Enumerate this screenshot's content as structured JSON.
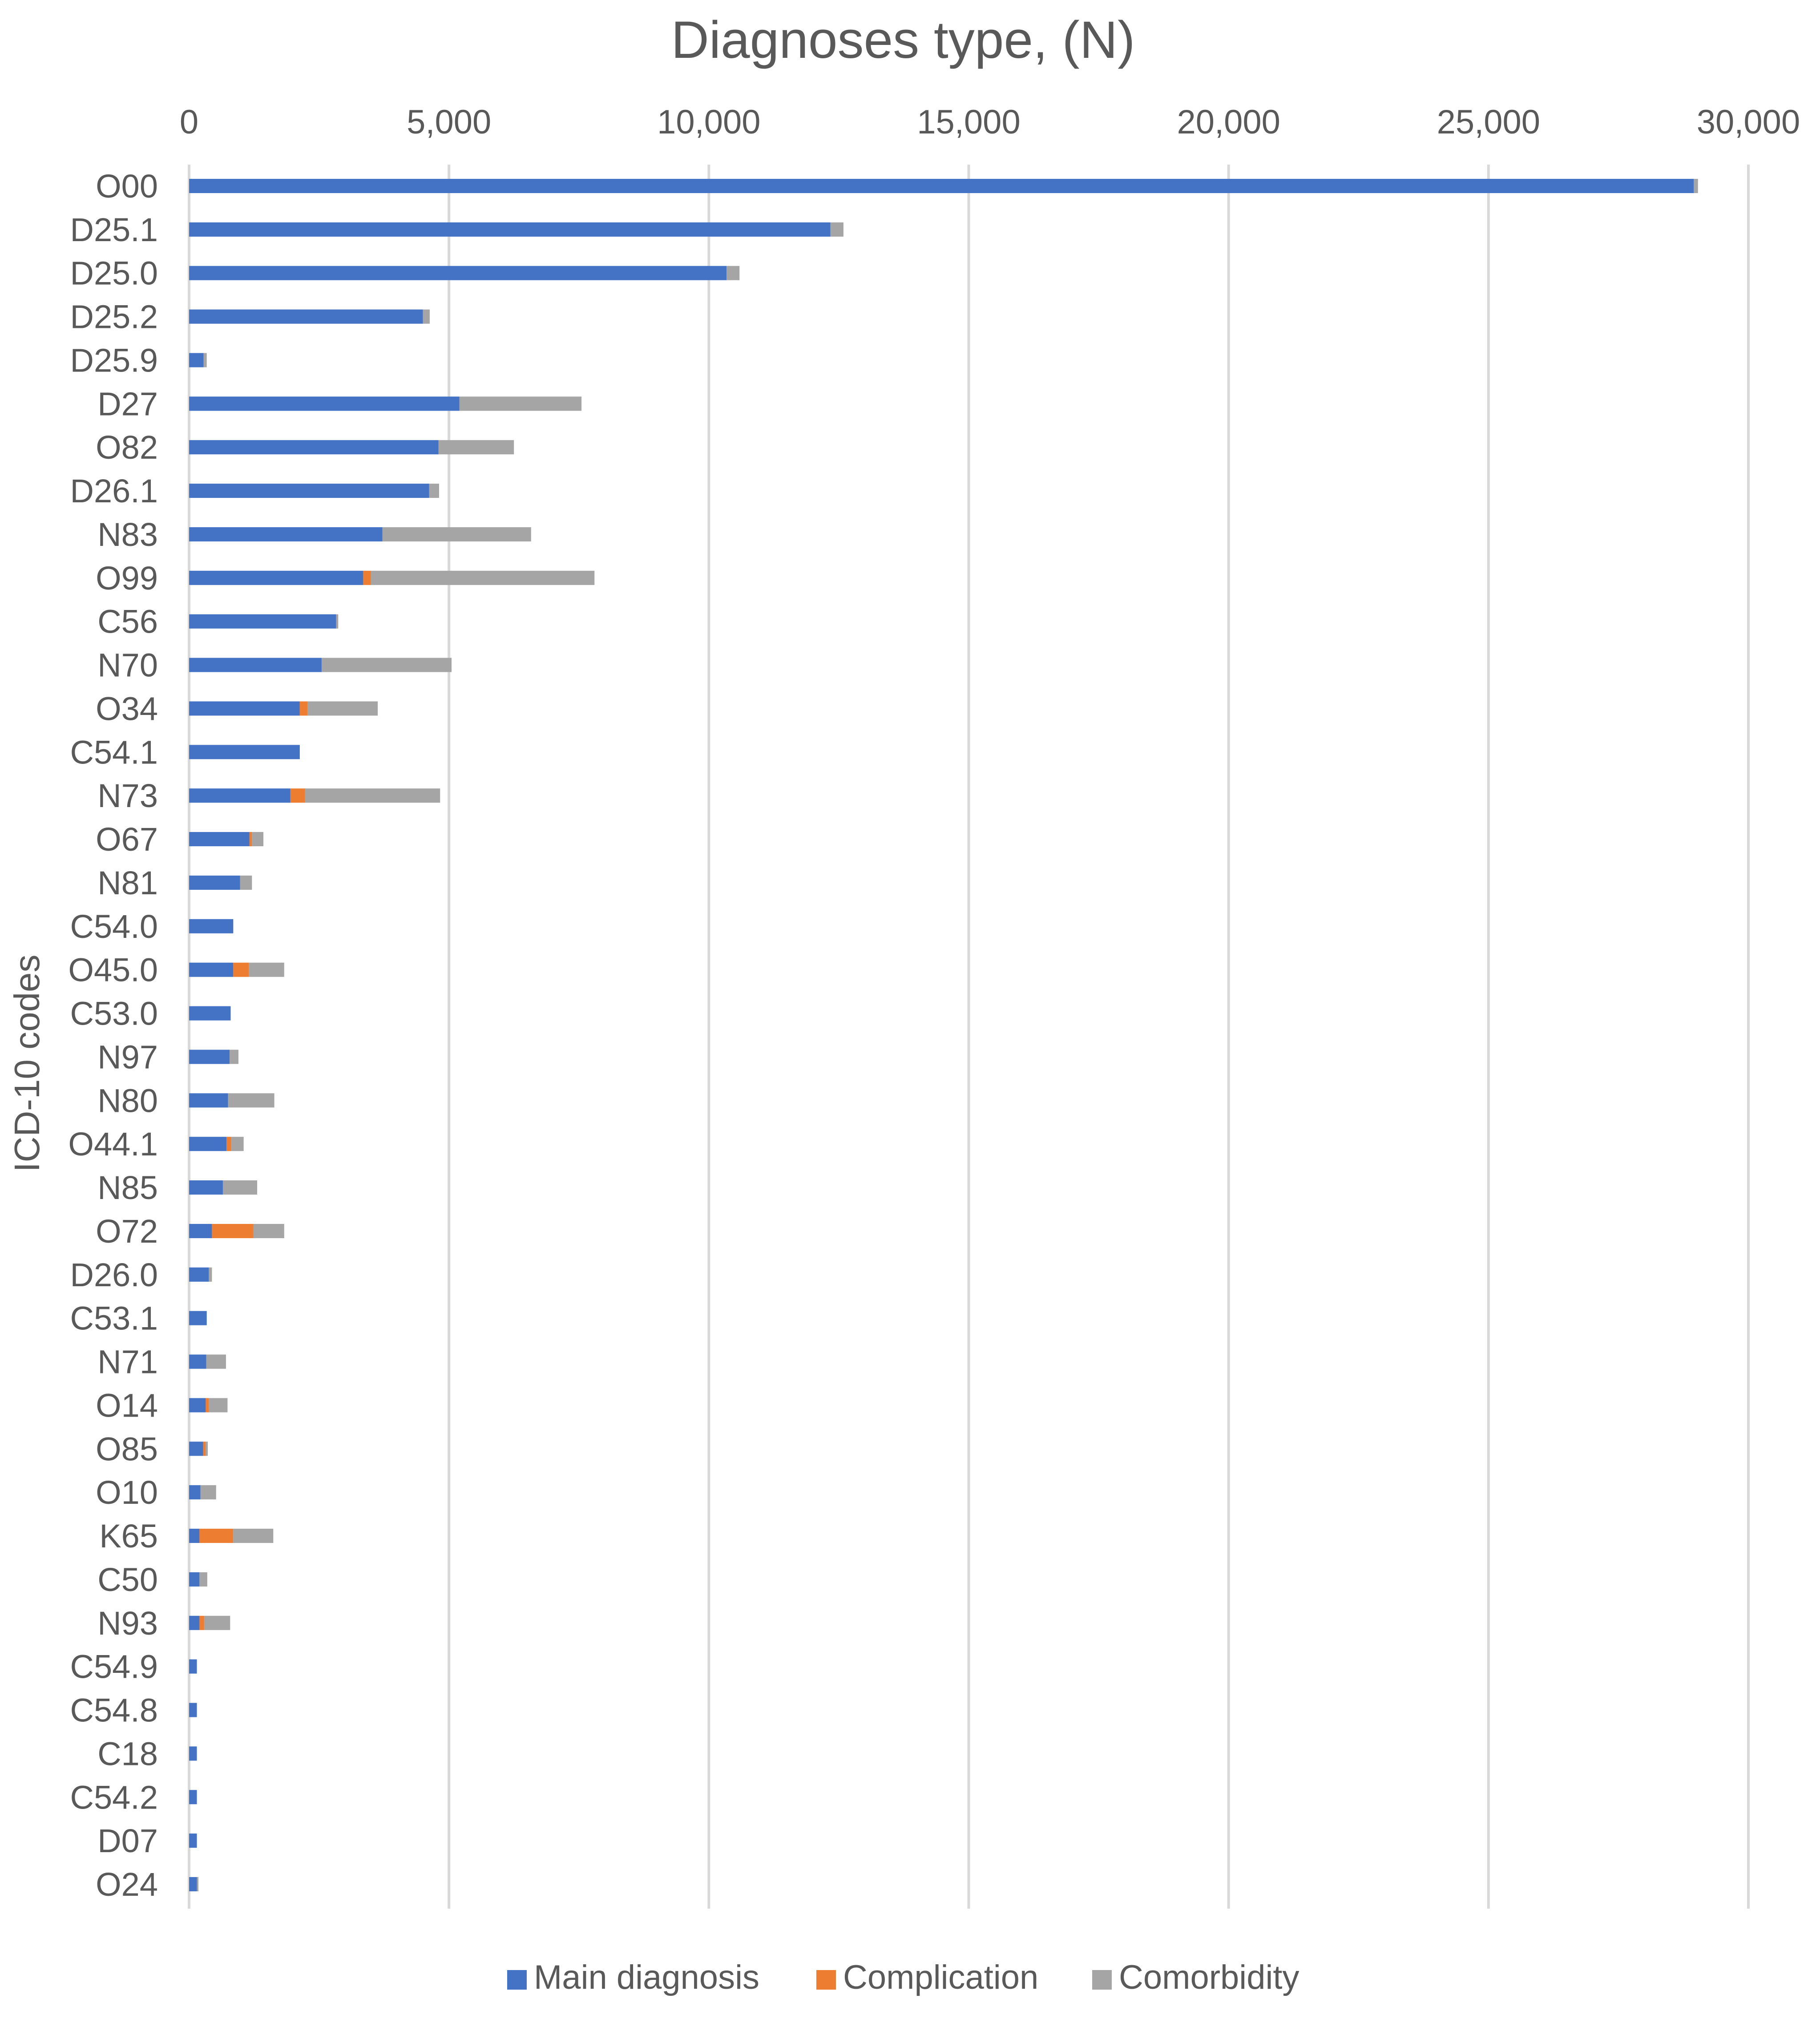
{
  "chart_data": {
    "type": "bar",
    "orientation": "horizontal",
    "stacked": true,
    "title": "Diagnoses type, (N)",
    "ylabel": "ICD-10 codes",
    "xlabel": "",
    "xlim": [
      0,
      30000
    ],
    "x_ticks": [
      0,
      5000,
      10000,
      15000,
      20000,
      25000,
      30000
    ],
    "x_tick_labels": [
      "0",
      "5,000",
      "10,000",
      "15,000",
      "20,000",
      "25,000",
      "30,000"
    ],
    "x_axis_position": "top",
    "grid": true,
    "legend_position": "bottom",
    "categories": [
      "O00",
      "D25.1",
      "D25.0",
      "D25.2",
      "D25.9",
      "D27",
      "O82",
      "D26.1",
      "N83",
      "O99",
      "C56",
      "N70",
      "O34",
      "C54.1",
      "N73",
      "O67",
      "N81",
      "C54.0",
      "O45.0",
      "C53.0",
      "N97",
      "N80",
      "O44.1",
      "N85",
      "O72",
      "D26.0",
      "C53.1",
      "N71",
      "O14",
      "O85",
      "O10",
      "K65",
      "C50",
      "N93",
      "C54.9",
      "C54.8",
      "C18",
      "C54.2",
      "D07",
      "O24"
    ],
    "series": [
      {
        "name": "Main diagnosis",
        "color": "#4472C4",
        "values": [
          28950,
          12340,
          10340,
          4500,
          280,
          5200,
          4800,
          4620,
          3720,
          3350,
          2830,
          2550,
          2130,
          2130,
          1950,
          1160,
          980,
          850,
          850,
          800,
          780,
          750,
          720,
          650,
          440,
          380,
          340,
          330,
          320,
          270,
          220,
          200,
          200,
          200,
          150,
          150,
          150,
          150,
          150,
          150
        ]
      },
      {
        "name": "Complication",
        "color": "#ED7D31",
        "values": [
          0,
          0,
          0,
          0,
          0,
          0,
          0,
          0,
          0,
          150,
          0,
          0,
          150,
          0,
          280,
          50,
          0,
          0,
          300,
          0,
          0,
          0,
          90,
          0,
          800,
          0,
          0,
          0,
          60,
          50,
          0,
          650,
          0,
          90,
          0,
          0,
          0,
          0,
          0,
          0
        ]
      },
      {
        "name": "Comorbidity",
        "color": "#A5A5A5",
        "values": [
          80,
          250,
          250,
          130,
          60,
          2350,
          1450,
          190,
          2860,
          4300,
          40,
          2500,
          1350,
          0,
          2600,
          220,
          230,
          0,
          680,
          0,
          170,
          890,
          240,
          660,
          590,
          60,
          0,
          380,
          360,
          40,
          300,
          770,
          150,
          500,
          0,
          0,
          0,
          0,
          0,
          30
        ]
      }
    ]
  }
}
